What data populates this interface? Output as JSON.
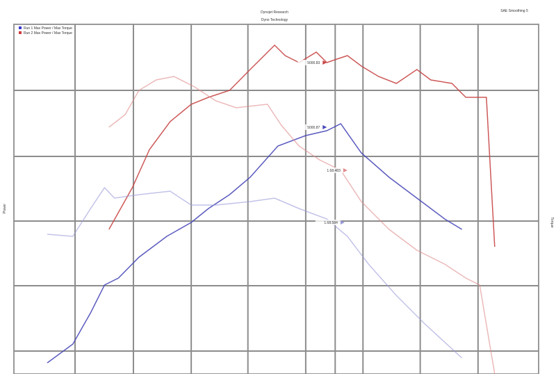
{
  "header": {
    "title": "Dynojet Research",
    "subtitle": "Dyno Technology",
    "right_caption": "SAE Smoothing 5"
  },
  "legend": {
    "placement": "top-left",
    "entries": [
      {
        "name": "Run 1 Max Power / Max Torque",
        "color": "#3b3bd0"
      },
      {
        "name": "Run 2 Max Power / Max Torque",
        "color": "#d03b3b"
      }
    ]
  },
  "chart_data": {
    "type": "line",
    "title": "Dynojet Research",
    "xlabel": "",
    "ylabel": "Power",
    "y2label": "Torque",
    "xlim": [
      0,
      9.44
    ],
    "ylim": [
      0,
      5.03
    ],
    "grid": true,
    "x_gridlines": [
      1.1,
      2.15,
      3.19,
      4.21,
      5.25,
      5.78,
      6.28,
      7.31,
      8.35
    ],
    "y_gridlines": [
      0.33,
      1.27,
      2.2,
      3.13,
      4.08
    ],
    "series": [
      {
        "color": "#c84646",
        "opacity": 0.9,
        "x": [
          1.71,
          2.13,
          2.44,
          2.81,
          3.19,
          3.5,
          3.88,
          4.25,
          4.69,
          4.88,
          5.13,
          5.44,
          5.63,
          5.81,
          6,
          6.25,
          6.56,
          6.88,
          7.25,
          7.5,
          7.88,
          8.13,
          8.38,
          8.5,
          8.65
        ],
        "y": [
          2.08,
          2.68,
          3.23,
          3.63,
          3.88,
          3.98,
          4.08,
          4.38,
          4.73,
          4.58,
          4.48,
          4.63,
          4.48,
          4.53,
          4.58,
          4.43,
          4.28,
          4.18,
          4.38,
          4.23,
          4.18,
          3.98,
          3.98,
          3.98,
          1.83
        ]
      },
      {
        "color": "#4848b8",
        "opacity": 0.9,
        "x": [
          0.6,
          1.06,
          1.38,
          1.63,
          1.88,
          2.25,
          2.75,
          3.19,
          3.5,
          3.88,
          4.25,
          4.75,
          5.25,
          5.63,
          5.88,
          6.25,
          6.75,
          7.25,
          7.75,
          8.06
        ],
        "y": [
          0.16,
          0.43,
          0.88,
          1.28,
          1.38,
          1.68,
          1.98,
          2.18,
          2.38,
          2.58,
          2.83,
          3.28,
          3.43,
          3.5,
          3.6,
          3.18,
          2.83,
          2.53,
          2.23,
          2.08
        ]
      },
      {
        "color": "#e08a8a",
        "opacity": 0.6,
        "x": [
          1.71,
          2.0,
          2.25,
          2.56,
          2.88,
          3.25,
          3.63,
          4,
          4.56,
          4.81,
          5.13,
          5.5,
          5.88,
          6.25,
          6.75,
          7.25,
          7.75,
          8.13,
          8.38,
          8.65
        ],
        "y": [
          3.55,
          3.73,
          4.08,
          4.23,
          4.28,
          4.13,
          3.93,
          3.83,
          3.88,
          3.58,
          3.28,
          3.08,
          2.93,
          2.48,
          2.08,
          1.78,
          1.58,
          1.38,
          1.28,
          0
        ]
      },
      {
        "color": "#9a9ad8",
        "opacity": 0.6,
        "x": [
          0.6,
          1.06,
          1.38,
          1.63,
          1.81,
          2.25,
          2.81,
          3.19,
          3.63,
          4.25,
          4.69,
          5.13,
          5.63,
          6,
          6.38,
          6.88,
          7.38,
          8.06
        ],
        "y": [
          2.01,
          1.98,
          2.38,
          2.68,
          2.53,
          2.58,
          2.63,
          2.43,
          2.43,
          2.48,
          2.53,
          2.38,
          2.23,
          1.98,
          1.58,
          1.13,
          0.73,
          0.23
        ]
      }
    ],
    "annotations": [
      {
        "text": "5000.83",
        "x": 5.63,
        "y": 4.48,
        "color": "#c84646"
      },
      {
        "text": "5000.87",
        "x": 5.63,
        "y": 3.55,
        "color": "#4848b8"
      },
      {
        "text": "1.68.483",
        "x": 6.0,
        "y": 2.93,
        "color": "#e08a8a"
      },
      {
        "text": "1.68.584",
        "x": 5.95,
        "y": 2.18,
        "color": "#9a9ad8"
      }
    ]
  }
}
